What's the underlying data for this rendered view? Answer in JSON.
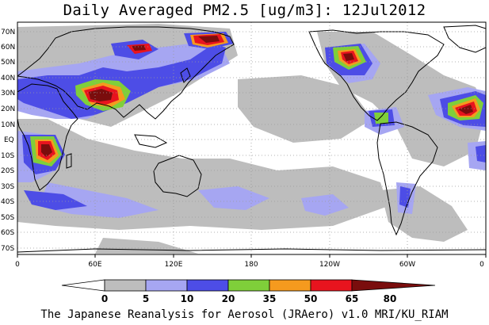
{
  "title": "Daily Averaged PM2.5 [ug/m3]: 12Jul2012",
  "credit": "The Japanese Reanalysis for Aerosol (JRAero) v1.0 MRI/KU_RIAM",
  "map": {
    "lat_labels": [
      "70N",
      "60N",
      "50N",
      "40N",
      "30N",
      "20N",
      "10N",
      "EQ",
      "10S",
      "20S",
      "30S",
      "40S",
      "50S",
      "60S",
      "70S"
    ],
    "lon_labels": [
      "0",
      "60E",
      "120E",
      "180",
      "120W",
      "60W",
      "0"
    ]
  },
  "colorbar": {
    "tick_labels": [
      "0",
      "5",
      "10",
      "20",
      "35",
      "50",
      "65",
      "80"
    ],
    "bins": [
      {
        "range": "0-5",
        "color": "#ffffff"
      },
      {
        "range": "5-10",
        "color": "#bdbdbd"
      },
      {
        "range": "10-20",
        "color": "#a6a6f2"
      },
      {
        "range": "20-35",
        "color": "#4d4de6"
      },
      {
        "range": "35-50",
        "color": "#7fcf3a"
      },
      {
        "range": "50-65",
        "color": "#f59a1e"
      },
      {
        "range": "65-80",
        "color": "#e8141e"
      },
      {
        "range": ">80",
        "color": "#7a0d0d"
      }
    ]
  },
  "colors": {
    "c5": "#bdbdbd",
    "c10": "#a6a6f2",
    "c20": "#4d4de6",
    "c35": "#7fcf3a",
    "c50": "#f59a1e",
    "c65": "#e8141e",
    "c80": "#7a0d0d"
  }
}
